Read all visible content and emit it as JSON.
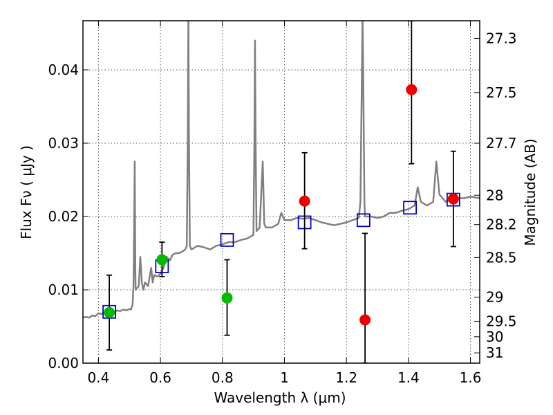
{
  "chart_data": {
    "type": "scatter",
    "xlabel": "Wavelength  λ (μm)",
    "ylabel": "Flux  Fν ( μJy )",
    "ylabel_right": "Magnitude (AB)",
    "xlim": [
      0.35,
      1.63
    ],
    "ylim": [
      0.0,
      0.0467
    ],
    "grid": true,
    "x_ticks": [
      {
        "value": 0.4,
        "label": "0.4"
      },
      {
        "value": 0.6,
        "label": "0.6"
      },
      {
        "value": 0.8,
        "label": "0.8"
      },
      {
        "value": 1.0,
        "label": "1"
      },
      {
        "value": 1.2,
        "label": "1.2"
      },
      {
        "value": 1.4,
        "label": "1.4"
      },
      {
        "value": 1.6,
        "label": "1.6"
      }
    ],
    "y_ticks": [
      {
        "value": 0.0,
        "label": "0.00"
      },
      {
        "value": 0.01,
        "label": "0.01"
      },
      {
        "value": 0.02,
        "label": "0.02"
      },
      {
        "value": 0.03,
        "label": "0.03"
      },
      {
        "value": 0.04,
        "label": "0.04"
      }
    ],
    "right_ticks": [
      {
        "flux": 0.0443,
        "label": "27.3"
      },
      {
        "flux": 0.0369,
        "label": "27.5"
      },
      {
        "flux": 0.03,
        "label": "27.7"
      },
      {
        "flux": 0.0229,
        "label": "28"
      },
      {
        "flux": 0.0189,
        "label": "28.2"
      },
      {
        "flux": 0.0144,
        "label": "28.5"
      },
      {
        "flux": 0.009,
        "label": "29"
      },
      {
        "flux": 0.0057,
        "label": "29.5"
      },
      {
        "flux": 0.0036,
        "label": "30"
      },
      {
        "flux": 0.0014,
        "label": "31"
      }
    ],
    "colors": {
      "spectrum": "#808080",
      "model_points": "#0000cc",
      "green_points": "#00bb00",
      "red_points": "#ee0000",
      "errorbars": "#000000",
      "grid": "#555555"
    },
    "spectrum": [
      [
        0.35,
        0.0062
      ],
      [
        0.36,
        0.0063
      ],
      [
        0.37,
        0.0062
      ],
      [
        0.38,
        0.0065
      ],
      [
        0.39,
        0.0064
      ],
      [
        0.4,
        0.0068
      ],
      [
        0.41,
        0.0067
      ],
      [
        0.42,
        0.0069
      ],
      [
        0.43,
        0.007
      ],
      [
        0.44,
        0.0071
      ],
      [
        0.45,
        0.0069
      ],
      [
        0.46,
        0.0072
      ],
      [
        0.47,
        0.0071
      ],
      [
        0.48,
        0.0073
      ],
      [
        0.49,
        0.0072
      ],
      [
        0.5,
        0.0074
      ],
      [
        0.505,
        0.0073
      ],
      [
        0.51,
        0.008
      ],
      [
        0.513,
        0.0105
      ],
      [
        0.515,
        0.018
      ],
      [
        0.517,
        0.0275
      ],
      [
        0.519,
        0.013
      ],
      [
        0.52,
        0.01
      ],
      [
        0.53,
        0.0105
      ],
      [
        0.535,
        0.0145
      ],
      [
        0.54,
        0.011
      ],
      [
        0.545,
        0.01
      ],
      [
        0.55,
        0.011
      ],
      [
        0.56,
        0.0105
      ],
      [
        0.57,
        0.013
      ],
      [
        0.575,
        0.011
      ],
      [
        0.58,
        0.012
      ],
      [
        0.59,
        0.0118
      ],
      [
        0.6,
        0.0122
      ],
      [
        0.61,
        0.013
      ],
      [
        0.62,
        0.0145
      ],
      [
        0.63,
        0.014
      ],
      [
        0.64,
        0.0148
      ],
      [
        0.65,
        0.015
      ],
      [
        0.66,
        0.015
      ],
      [
        0.67,
        0.0152
      ],
      [
        0.68,
        0.0155
      ],
      [
        0.685,
        0.016
      ],
      [
        0.688,
        0.03
      ],
      [
        0.69,
        0.0475
      ],
      [
        0.692,
        0.03
      ],
      [
        0.695,
        0.016
      ],
      [
        0.7,
        0.0155
      ],
      [
        0.72,
        0.016
      ],
      [
        0.74,
        0.0158
      ],
      [
        0.76,
        0.0155
      ],
      [
        0.78,
        0.016
      ],
      [
        0.8,
        0.0162
      ],
      [
        0.82,
        0.0165
      ],
      [
        0.84,
        0.0165
      ],
      [
        0.86,
        0.0168
      ],
      [
        0.88,
        0.017
      ],
      [
        0.9,
        0.0175
      ],
      [
        0.903,
        0.03
      ],
      [
        0.905,
        0.044
      ],
      [
        0.907,
        0.03
      ],
      [
        0.91,
        0.018
      ],
      [
        0.92,
        0.0185
      ],
      [
        0.925,
        0.023
      ],
      [
        0.93,
        0.0275
      ],
      [
        0.935,
        0.019
      ],
      [
        0.94,
        0.0185
      ],
      [
        0.96,
        0.0185
      ],
      [
        0.98,
        0.019
      ],
      [
        0.99,
        0.0205
      ],
      [
        1.0,
        0.0195
      ],
      [
        1.02,
        0.0195
      ],
      [
        1.04,
        0.0198
      ],
      [
        1.06,
        0.0197
      ],
      [
        1.08,
        0.0198
      ],
      [
        1.1,
        0.0195
      ],
      [
        1.12,
        0.0192
      ],
      [
        1.14,
        0.019
      ],
      [
        1.16,
        0.0188
      ],
      [
        1.18,
        0.019
      ],
      [
        1.2,
        0.0192
      ],
      [
        1.22,
        0.0195
      ],
      [
        1.24,
        0.0198
      ],
      [
        1.245,
        0.022
      ],
      [
        1.25,
        0.04
      ],
      [
        1.252,
        0.0475
      ],
      [
        1.254,
        0.04
      ],
      [
        1.258,
        0.022
      ],
      [
        1.26,
        0.02
      ],
      [
        1.28,
        0.02
      ],
      [
        1.3,
        0.0198
      ],
      [
        1.32,
        0.02
      ],
      [
        1.34,
        0.0205
      ],
      [
        1.36,
        0.0205
      ],
      [
        1.38,
        0.0208
      ],
      [
        1.4,
        0.021
      ],
      [
        1.42,
        0.0215
      ],
      [
        1.43,
        0.024
      ],
      [
        1.44,
        0.022
      ],
      [
        1.46,
        0.0215
      ],
      [
        1.48,
        0.022
      ],
      [
        1.49,
        0.0275
      ],
      [
        1.5,
        0.023
      ],
      [
        1.52,
        0.022
      ],
      [
        1.54,
        0.0225
      ],
      [
        1.56,
        0.0225
      ],
      [
        1.58,
        0.0225
      ],
      [
        1.6,
        0.0227
      ],
      [
        1.63,
        0.0225
      ]
    ],
    "model_points": [
      {
        "x": 0.435,
        "y": 0.007
      },
      {
        "x": 0.605,
        "y": 0.0132
      },
      {
        "x": 0.815,
        "y": 0.0168
      },
      {
        "x": 1.065,
        "y": 0.0192
      },
      {
        "x": 1.255,
        "y": 0.0195
      },
      {
        "x": 1.405,
        "y": 0.0212
      },
      {
        "x": 1.545,
        "y": 0.0223
      }
    ],
    "observations": [
      {
        "x": 0.435,
        "y": 0.0069,
        "err_low": 0.0018,
        "err_high": 0.012,
        "color": "green"
      },
      {
        "x": 0.605,
        "y": 0.0141,
        "err_low": 0.0118,
        "err_high": 0.0165,
        "color": "green"
      },
      {
        "x": 0.815,
        "y": 0.0089,
        "err_low": 0.0038,
        "err_high": 0.0141,
        "color": "green"
      },
      {
        "x": 1.065,
        "y": 0.0221,
        "err_low": 0.0156,
        "err_high": 0.0287,
        "color": "red"
      },
      {
        "x": 1.26,
        "y": 0.0059,
        "err_low": 0.0,
        "err_high": 0.0177,
        "color": "red"
      },
      {
        "x": 1.41,
        "y": 0.0373,
        "err_low": 0.0272,
        "err_high": 0.0467,
        "color": "red"
      },
      {
        "x": 1.545,
        "y": 0.0224,
        "err_low": 0.0159,
        "err_high": 0.0289,
        "color": "red"
      }
    ]
  }
}
